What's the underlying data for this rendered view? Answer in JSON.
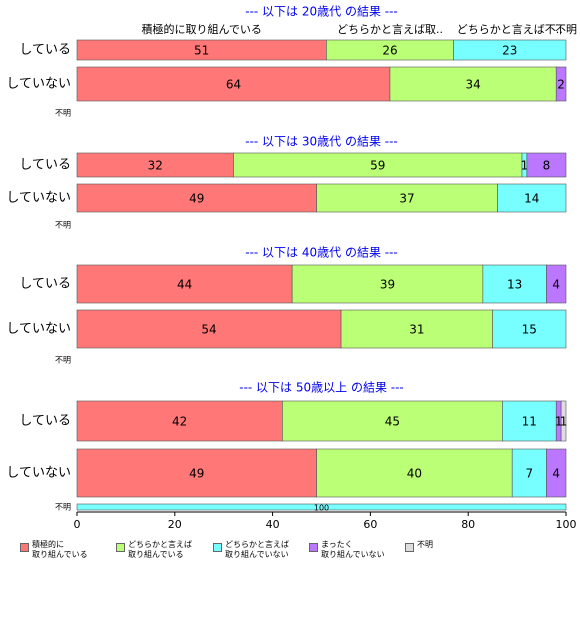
{
  "chart_data": {
    "type": "stacked-barh",
    "xlim": [
      0,
      100
    ],
    "xticks": [
      0,
      20,
      40,
      60,
      80,
      100
    ],
    "header_labels": [
      "積極的に取り組んでいる",
      "どちらかと言えば取..",
      "どちらかと言えば不..",
      null,
      "不明"
    ],
    "series": [
      {
        "name": "積極的に\n取り組んでいる",
        "color": "#ff7777"
      },
      {
        "name": "どちらかと言えば\n取り組んでいる",
        "color": "#bbff77"
      },
      {
        "name": "どちらかと言えば\n取り組んでいない",
        "color": "#77ffff"
      },
      {
        "name": "まったく\n取り組んでいない",
        "color": "#bb77ff"
      },
      {
        "name": "不明",
        "color": "#dddddd"
      }
    ],
    "panels": [
      {
        "title": "--- 以下は 20歳代 の結果 ---",
        "rows": [
          {
            "label": "している",
            "values": [
              51,
              26,
              23,
              null,
              null
            ]
          },
          {
            "label": "していない",
            "values": [
              64,
              34,
              null,
              2,
              null
            ]
          },
          {
            "label": "不明",
            "values": [
              null,
              null,
              null,
              null,
              null
            ]
          }
        ]
      },
      {
        "title": "--- 以下は 30歳代 の結果 ---",
        "rows": [
          {
            "label": "している",
            "values": [
              32,
              59,
              1,
              8,
              null
            ]
          },
          {
            "label": "していない",
            "values": [
              49,
              37,
              14,
              null,
              null
            ]
          },
          {
            "label": "不明",
            "values": [
              null,
              null,
              null,
              null,
              null
            ]
          }
        ]
      },
      {
        "title": "--- 以下は 40歳代 の結果 ---",
        "rows": [
          {
            "label": "している",
            "values": [
              44,
              39,
              13,
              4,
              null
            ]
          },
          {
            "label": "していない",
            "values": [
              54,
              31,
              15,
              null,
              null
            ]
          },
          {
            "label": "不明",
            "values": [
              null,
              null,
              null,
              null,
              null
            ]
          }
        ]
      },
      {
        "title": "--- 以下は 50歳以上 の結果 ---",
        "rows": [
          {
            "label": "している",
            "values": [
              42,
              45,
              11,
              1,
              1
            ]
          },
          {
            "label": "していない",
            "values": [
              49,
              40,
              7,
              4,
              null
            ]
          },
          {
            "label": "不明",
            "values": [
              null,
              null,
              100,
              null,
              null
            ]
          }
        ]
      }
    ]
  }
}
